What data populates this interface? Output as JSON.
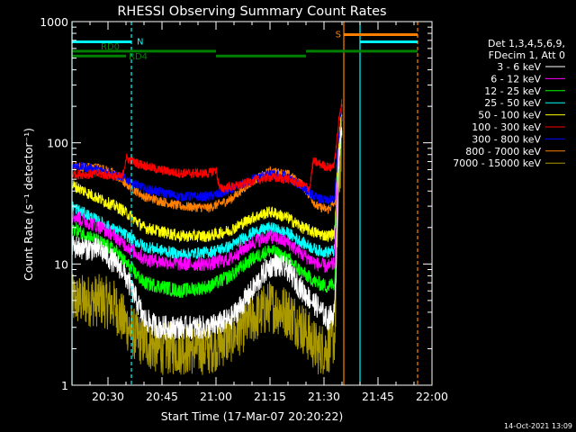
{
  "chart_data": {
    "type": "line",
    "title": "RHESSI Observing Summary Count Rates",
    "xlabel": "Start Time (17-Mar-07 20:20:22)",
    "ylabel": "Count Rate (s⁻¹ detector⁻¹)",
    "x_unit": "minutes after 20:20",
    "xlim": [
      0,
      100
    ],
    "x_ticks": [
      {
        "t": 10,
        "label": "20:30"
      },
      {
        "t": 25,
        "label": "20:45"
      },
      {
        "t": 40,
        "label": "21:00"
      },
      {
        "t": 55,
        "label": "21:15"
      },
      {
        "t": 70,
        "label": "21:30"
      },
      {
        "t": 85,
        "label": "21:45"
      },
      {
        "t": 100,
        "label": "22:00"
      }
    ],
    "y_scale": "log",
    "ylim": [
      1,
      1000
    ],
    "y_ticks": [
      {
        "v": 1,
        "label": "1"
      },
      {
        "v": 10,
        "label": "10"
      },
      {
        "v": 100,
        "label": "100"
      },
      {
        "v": 1000,
        "label": "1000"
      }
    ],
    "legend_position": "right",
    "legend_header": [
      "Det 1,3,4,5,6,9,",
      "FDecim 1, Att 0"
    ],
    "series": [
      {
        "name": "3 - 6 keV",
        "color": "#ffffff",
        "noise": 0.1,
        "points": [
          [
            0,
            14
          ],
          [
            8,
            13
          ],
          [
            14,
            9
          ],
          [
            18,
            5
          ],
          [
            20,
            3.5
          ],
          [
            24,
            3
          ],
          [
            30,
            3
          ],
          [
            38,
            3
          ],
          [
            44,
            3.5
          ],
          [
            50,
            6
          ],
          [
            54,
            9
          ],
          [
            56,
            10
          ],
          [
            60,
            9
          ],
          [
            64,
            6
          ],
          [
            68,
            4.5
          ],
          [
            71,
            3.5
          ],
          [
            73,
            4
          ],
          [
            74,
            60
          ],
          [
            75,
            140
          ]
        ]
      },
      {
        "name": "6 - 12 keV",
        "color": "#ff00ff",
        "noise": 0.06,
        "points": [
          [
            0,
            25
          ],
          [
            8,
            20
          ],
          [
            12,
            17
          ],
          [
            14,
            15
          ],
          [
            20,
            11
          ],
          [
            30,
            10
          ],
          [
            38,
            10
          ],
          [
            44,
            11
          ],
          [
            50,
            15
          ],
          [
            55,
            17
          ],
          [
            60,
            15
          ],
          [
            64,
            12
          ],
          [
            68,
            10
          ],
          [
            71,
            9.5
          ],
          [
            73,
            10
          ],
          [
            74,
            70
          ],
          [
            75,
            160
          ]
        ]
      },
      {
        "name": "12 - 25 keV",
        "color": "#00ff00",
        "noise": 0.06,
        "points": [
          [
            0,
            20
          ],
          [
            8,
            15
          ],
          [
            12,
            13
          ],
          [
            14,
            11
          ],
          [
            20,
            7
          ],
          [
            30,
            6
          ],
          [
            38,
            6.5
          ],
          [
            44,
            8
          ],
          [
            50,
            11
          ],
          [
            55,
            13
          ],
          [
            60,
            11
          ],
          [
            64,
            8.5
          ],
          [
            68,
            7
          ],
          [
            71,
            6.5
          ],
          [
            73,
            7
          ],
          [
            74,
            60
          ],
          [
            75,
            140
          ]
        ]
      },
      {
        "name": "25 - 50 keV",
        "color": "#00ffff",
        "noise": 0.05,
        "points": [
          [
            0,
            30
          ],
          [
            8,
            22
          ],
          [
            12,
            19
          ],
          [
            14,
            18
          ],
          [
            20,
            14
          ],
          [
            30,
            12
          ],
          [
            38,
            12.5
          ],
          [
            44,
            14
          ],
          [
            50,
            18
          ],
          [
            55,
            20
          ],
          [
            60,
            18
          ],
          [
            64,
            15
          ],
          [
            68,
            13
          ],
          [
            71,
            12.5
          ],
          [
            73,
            13
          ],
          [
            74,
            70
          ],
          [
            75,
            160
          ]
        ]
      },
      {
        "name": "50 - 100 keV",
        "color": "#ffff00",
        "noise": 0.05,
        "points": [
          [
            0,
            45
          ],
          [
            8,
            34
          ],
          [
            12,
            30
          ],
          [
            14,
            28
          ],
          [
            20,
            20
          ],
          [
            30,
            17
          ],
          [
            38,
            17
          ],
          [
            44,
            19
          ],
          [
            50,
            24
          ],
          [
            55,
            27
          ],
          [
            60,
            24
          ],
          [
            64,
            20
          ],
          [
            68,
            18
          ],
          [
            71,
            17
          ],
          [
            73,
            18
          ],
          [
            74,
            90
          ],
          [
            75,
            180
          ]
        ]
      },
      {
        "name": "100 - 300 keV",
        "color": "#ff0000",
        "noise": 0.04,
        "points": [
          [
            0,
            55
          ],
          [
            8,
            55
          ],
          [
            14,
            52
          ],
          [
            15,
            75
          ],
          [
            18,
            68
          ],
          [
            24,
            60
          ],
          [
            30,
            56
          ],
          [
            38,
            56
          ],
          [
            40,
            60
          ],
          [
            41,
            42
          ],
          [
            46,
            44
          ],
          [
            50,
            48
          ],
          [
            55,
            52
          ],
          [
            60,
            50
          ],
          [
            64,
            45
          ],
          [
            66,
            42
          ],
          [
            67,
            70
          ],
          [
            70,
            65
          ],
          [
            72,
            62
          ],
          [
            73,
            70
          ],
          [
            74,
            140
          ],
          [
            75,
            240
          ]
        ]
      },
      {
        "name": "300 - 800 keV",
        "color": "#0000ff",
        "noise": 0.04,
        "points": [
          [
            0,
            65
          ],
          [
            8,
            60
          ],
          [
            12,
            55
          ],
          [
            14,
            52
          ],
          [
            20,
            42
          ],
          [
            30,
            36
          ],
          [
            38,
            36
          ],
          [
            44,
            40
          ],
          [
            50,
            50
          ],
          [
            55,
            55
          ],
          [
            60,
            52
          ],
          [
            64,
            43
          ],
          [
            68,
            35
          ],
          [
            71,
            33
          ],
          [
            73,
            35
          ],
          [
            74,
            100
          ],
          [
            75,
            200
          ]
        ]
      },
      {
        "name": "800 - 7000 keV",
        "color": "#ff8000",
        "noise": 0.04,
        "points": [
          [
            0,
            64
          ],
          [
            8,
            62
          ],
          [
            12,
            55
          ],
          [
            14,
            48
          ],
          [
            20,
            36
          ],
          [
            30,
            30
          ],
          [
            38,
            29
          ],
          [
            44,
            34
          ],
          [
            50,
            48
          ],
          [
            55,
            58
          ],
          [
            60,
            55
          ],
          [
            64,
            45
          ],
          [
            68,
            30
          ],
          [
            71,
            28
          ],
          [
            73,
            32
          ],
          [
            74,
            100
          ],
          [
            75,
            200
          ]
        ]
      },
      {
        "name": "7000 - 15000 keV",
        "color": "#aa9900",
        "noise": 0.22,
        "points": [
          [
            0,
            5
          ],
          [
            8,
            5
          ],
          [
            12,
            4.5
          ],
          [
            14,
            3.5
          ],
          [
            18,
            2.5
          ],
          [
            24,
            2
          ],
          [
            30,
            2
          ],
          [
            38,
            2
          ],
          [
            44,
            2.5
          ],
          [
            50,
            3.5
          ],
          [
            55,
            4.5
          ],
          [
            60,
            4
          ],
          [
            64,
            3
          ],
          [
            68,
            2
          ],
          [
            71,
            2
          ],
          [
            73,
            2.5
          ],
          [
            74,
            40
          ],
          [
            75,
            100
          ]
        ]
      }
    ],
    "markers": [
      {
        "t": 0,
        "color": "#00ffff",
        "style": "solid"
      },
      {
        "t": 16.5,
        "color": "#00ffff",
        "style": "dashed"
      },
      {
        "t": 75.5,
        "color": "#ff8000",
        "style": "solid"
      },
      {
        "t": 80,
        "color": "#00ffff",
        "style": "solid"
      },
      {
        "t": 96,
        "color": "#ff8000",
        "style": "dashed"
      }
    ],
    "flag_bars": [
      {
        "label": "N",
        "color": "#00ffff",
        "level": 680,
        "segments": [
          [
            0,
            16.5
          ],
          [
            80,
            96
          ]
        ]
      },
      {
        "label": "S",
        "color": "#ff8000",
        "level": 780,
        "segments": [
          [
            75.5,
            96
          ]
        ]
      },
      {
        "label": "RD0",
        "color": "#008000",
        "level": 570,
        "segments": [
          [
            0,
            40
          ],
          [
            65,
            96
          ]
        ]
      },
      {
        "label": "RD4",
        "color": "#008000",
        "level": 520,
        "segments": [
          [
            0,
            15
          ],
          [
            40,
            65
          ]
        ]
      }
    ],
    "footer_date": "14-Oct-2021 13:09"
  }
}
